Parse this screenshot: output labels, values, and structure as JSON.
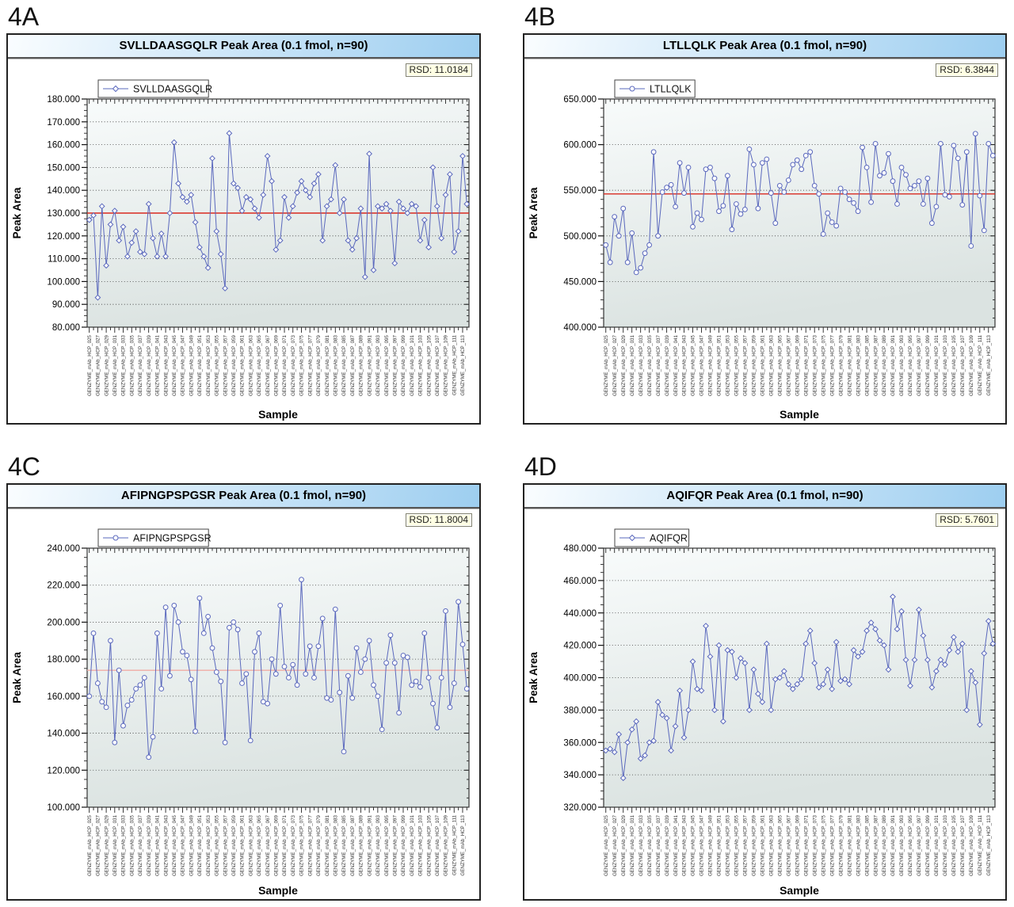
{
  "figure": {
    "background": "#ffffff",
    "sample_axis_label": "Sample",
    "value_axis_label": "Peak Area"
  },
  "colors": {
    "series_line": "#5a68bd",
    "marker_fill": "#ffffff",
    "mean_line_strong": "#d92a20",
    "mean_line_light": "#f0aba4",
    "title_bar_start": "#fafdff",
    "title_bar_end": "#9dcef0",
    "rsd_bg": "#ffffe3",
    "plot_bg_top": "#f8fbfb",
    "plot_bg_bottom": "#dbe3e1"
  },
  "sample_labels": [
    "GENZYME_mAb_HCP_025",
    "GENZYME_mAb_HCP_027",
    "GENZYME_mAb_HCP_029",
    "GENZYME_mAb_HCP_031",
    "GENZYME_mAb_HCP_033",
    "GENZYME_mAb_HCP_035",
    "GENZYME_mAb_HCP_037",
    "GENZYME_mAb_HCP_039",
    "GENZYME_mAb_HCP_041",
    "GENZYME_mAb_HCP_043",
    "GENZYME_mAb_HCP_045",
    "GENZYME_mAb_HCP_047",
    "GENZYME_mAb_HCP_049",
    "GENZYME_mAb_HCP_051",
    "GENZYME_mAb_HCP_053",
    "GENZYME_mAb_HCP_055",
    "GENZYME_mAb_HCP_057",
    "GENZYME_mAb_HCP_059",
    "GENZYME_mAb_HCP_061",
    "GENZYME_mAb_HCP_063",
    "GENZYME_mAb_HCP_065",
    "GENZYME_mAb_HCP_067",
    "GENZYME_mAb_HCP_069",
    "GENZYME_mAb_HCP_071",
    "GENZYME_mAb_HCP_073",
    "GENZYME_mAb_HCP_075",
    "GENZYME_mAb_HCP_077",
    "GENZYME_mAb_HCP_079",
    "GENZYME_mAb_HCP_081",
    "GENZYME_mAb_HCP_083",
    "GENZYME_mAb_HCP_085",
    "GENZYME_mAb_HCP_087",
    "GENZYME_mAb_HCP_089",
    "GENZYME_mAb_HCP_091",
    "GENZYME_mAb_HCP_093",
    "GENZYME_mAb_HCP_095",
    "GENZYME_mAb_HCP_097",
    "GENZYME_mAb_HCP_099",
    "GENZYME_mAb_HCP_101",
    "GENZYME_mAb_HCP_103",
    "GENZYME_mAb_HCP_105",
    "GENZYME_mAb_HCP_107",
    "GENZYME_mAb_HCP_109",
    "GENZYME_mAb_HCP_111",
    "GENZYME_mAb_HCP_113"
  ],
  "chart_data": [
    {
      "type": "line",
      "panel_label": "4A",
      "title": "SVLLDAASGQLR Peak Area (0.1 fmol, n=90)",
      "legend_label": "SVLLDAASGQLR",
      "rsd_label": "RSD: 11.0184",
      "xlabel": "Sample",
      "ylabel": "Peak Area",
      "marker": "diamond",
      "ylim": [
        80000,
        180000
      ],
      "ytick_step": 10000,
      "ytick_minor_divisions": 4,
      "mean_line": 130000,
      "mean_color": "#d92a20",
      "n": 90,
      "values": [
        127000,
        129000,
        93000,
        133000,
        107000,
        125000,
        131000,
        118000,
        124000,
        111000,
        117000,
        122000,
        113000,
        112000,
        134000,
        119000,
        111000,
        121000,
        111000,
        130000,
        161000,
        143000,
        137000,
        135000,
        138000,
        126000,
        115000,
        111000,
        106000,
        154000,
        122000,
        112000,
        97000,
        165000,
        143000,
        141000,
        131000,
        137000,
        136000,
        132000,
        128000,
        138000,
        155000,
        144000,
        114000,
        118000,
        137000,
        128000,
        133000,
        139000,
        144000,
        140000,
        137000,
        143000,
        147000,
        118000,
        133000,
        136000,
        151000,
        130000,
        136000,
        118000,
        114000,
        119000,
        132000,
        102000,
        156000,
        105000,
        133000,
        132000,
        134000,
        131000,
        108000,
        135000,
        132000,
        130000,
        134000,
        133000,
        118000,
        127000,
        115000,
        150000,
        133000,
        119000,
        138000,
        147000,
        113000,
        122000,
        155000,
        134000
      ]
    },
    {
      "type": "line",
      "panel_label": "4B",
      "title": "LTLLQLK Peak Area (0.1 fmol, n=90)",
      "legend_label": "LTLLQLK",
      "rsd_label": "RSD: 6.3844",
      "xlabel": "Sample",
      "ylabel": "Peak Area",
      "marker": "circle",
      "ylim": [
        400000,
        650000
      ],
      "ytick_step": 50000,
      "ytick_minor_divisions": 5,
      "mean_line": 546000,
      "mean_color": "#d92a20",
      "n": 90,
      "values": [
        490000,
        471000,
        521000,
        500000,
        530000,
        471000,
        503000,
        460000,
        465000,
        481000,
        490000,
        592000,
        500000,
        548000,
        553000,
        556000,
        532000,
        580000,
        547000,
        575000,
        510000,
        525000,
        518000,
        573000,
        575000,
        563000,
        527000,
        533000,
        566000,
        507000,
        535000,
        524000,
        529000,
        595000,
        578000,
        530000,
        580000,
        584000,
        547000,
        514000,
        555000,
        548000,
        561000,
        578000,
        583000,
        573000,
        588000,
        592000,
        555000,
        546000,
        502000,
        525000,
        515000,
        511000,
        552000,
        548000,
        540000,
        536000,
        527000,
        597000,
        575000,
        537000,
        601000,
        566000,
        569000,
        590000,
        560000,
        535000,
        575000,
        567000,
        552000,
        555000,
        560000,
        535000,
        563000,
        514000,
        532000,
        601000,
        545000,
        543000,
        599000,
        585000,
        534000,
        592000,
        489000,
        612000,
        544000,
        506000,
        601000,
        588000
      ]
    },
    {
      "type": "line",
      "panel_label": "4C",
      "title": "AFIPNGPSPGSR Peak Area (0.1 fmol, n=90)",
      "legend_label": "AFIPNGPSPGSR",
      "rsd_label": "RSD: 11.8004",
      "xlabel": "Sample",
      "ylabel": "Peak Area",
      "marker": "circle",
      "ylim": [
        100000,
        240000
      ],
      "ytick_step": 20000,
      "ytick_minor_divisions": 4,
      "mean_line": 174000,
      "mean_color": "#f0aba4",
      "n": 90,
      "values": [
        160000,
        194000,
        167000,
        157000,
        154000,
        190000,
        135000,
        174000,
        144000,
        155000,
        158000,
        164000,
        166000,
        170000,
        127000,
        138000,
        194000,
        164000,
        208000,
        171000,
        209000,
        200000,
        184000,
        182000,
        169000,
        141000,
        213000,
        194000,
        203000,
        186000,
        173000,
        168000,
        135000,
        197000,
        200000,
        196000,
        167000,
        172000,
        136000,
        184000,
        194000,
        157000,
        156000,
        180000,
        172000,
        209000,
        176000,
        170000,
        177000,
        166000,
        223000,
        172000,
        187000,
        170000,
        187000,
        202000,
        159000,
        158000,
        207000,
        162000,
        130000,
        171000,
        159000,
        186000,
        173000,
        180000,
        190000,
        166000,
        160000,
        142000,
        178000,
        193000,
        178000,
        151000,
        182000,
        181000,
        166000,
        168000,
        165000,
        194000,
        170000,
        156000,
        143000,
        170000,
        206000,
        154000,
        167000,
        211000,
        188000,
        164000
      ]
    },
    {
      "type": "line",
      "panel_label": "4D",
      "title": "AQIFQR Peak Area (0.1 fmol, n=90)",
      "legend_label": "AQIFQR",
      "rsd_label": "RSD: 5.7601",
      "xlabel": "Sample",
      "ylabel": "Peak Area",
      "marker": "diamond",
      "ylim": [
        320000,
        480000
      ],
      "ytick_step": 20000,
      "ytick_minor_divisions": 4,
      "mean_line": null,
      "mean_color": null,
      "n": 90,
      "values": [
        355000,
        356000,
        354000,
        365000,
        338000,
        360000,
        368000,
        373000,
        350000,
        352000,
        360000,
        361000,
        385000,
        377000,
        375000,
        355000,
        370000,
        392000,
        363000,
        380000,
        410000,
        393000,
        392000,
        432000,
        413000,
        380000,
        420000,
        373000,
        417000,
        416000,
        400000,
        412000,
        409000,
        380000,
        405000,
        390000,
        385000,
        421000,
        380000,
        399000,
        400000,
        404000,
        396000,
        393000,
        396000,
        399000,
        421000,
        429000,
        409000,
        394000,
        396000,
        405000,
        393000,
        422000,
        398000,
        399000,
        396000,
        417000,
        413000,
        416000,
        429000,
        434000,
        430000,
        423000,
        420000,
        405000,
        450000,
        430000,
        441000,
        411000,
        395000,
        411000,
        442000,
        426000,
        411000,
        394000,
        404000,
        411000,
        408000,
        417000,
        425000,
        416000,
        421000,
        380000,
        404000,
        397000,
        371000,
        415000,
        435000,
        421000
      ]
    }
  ]
}
